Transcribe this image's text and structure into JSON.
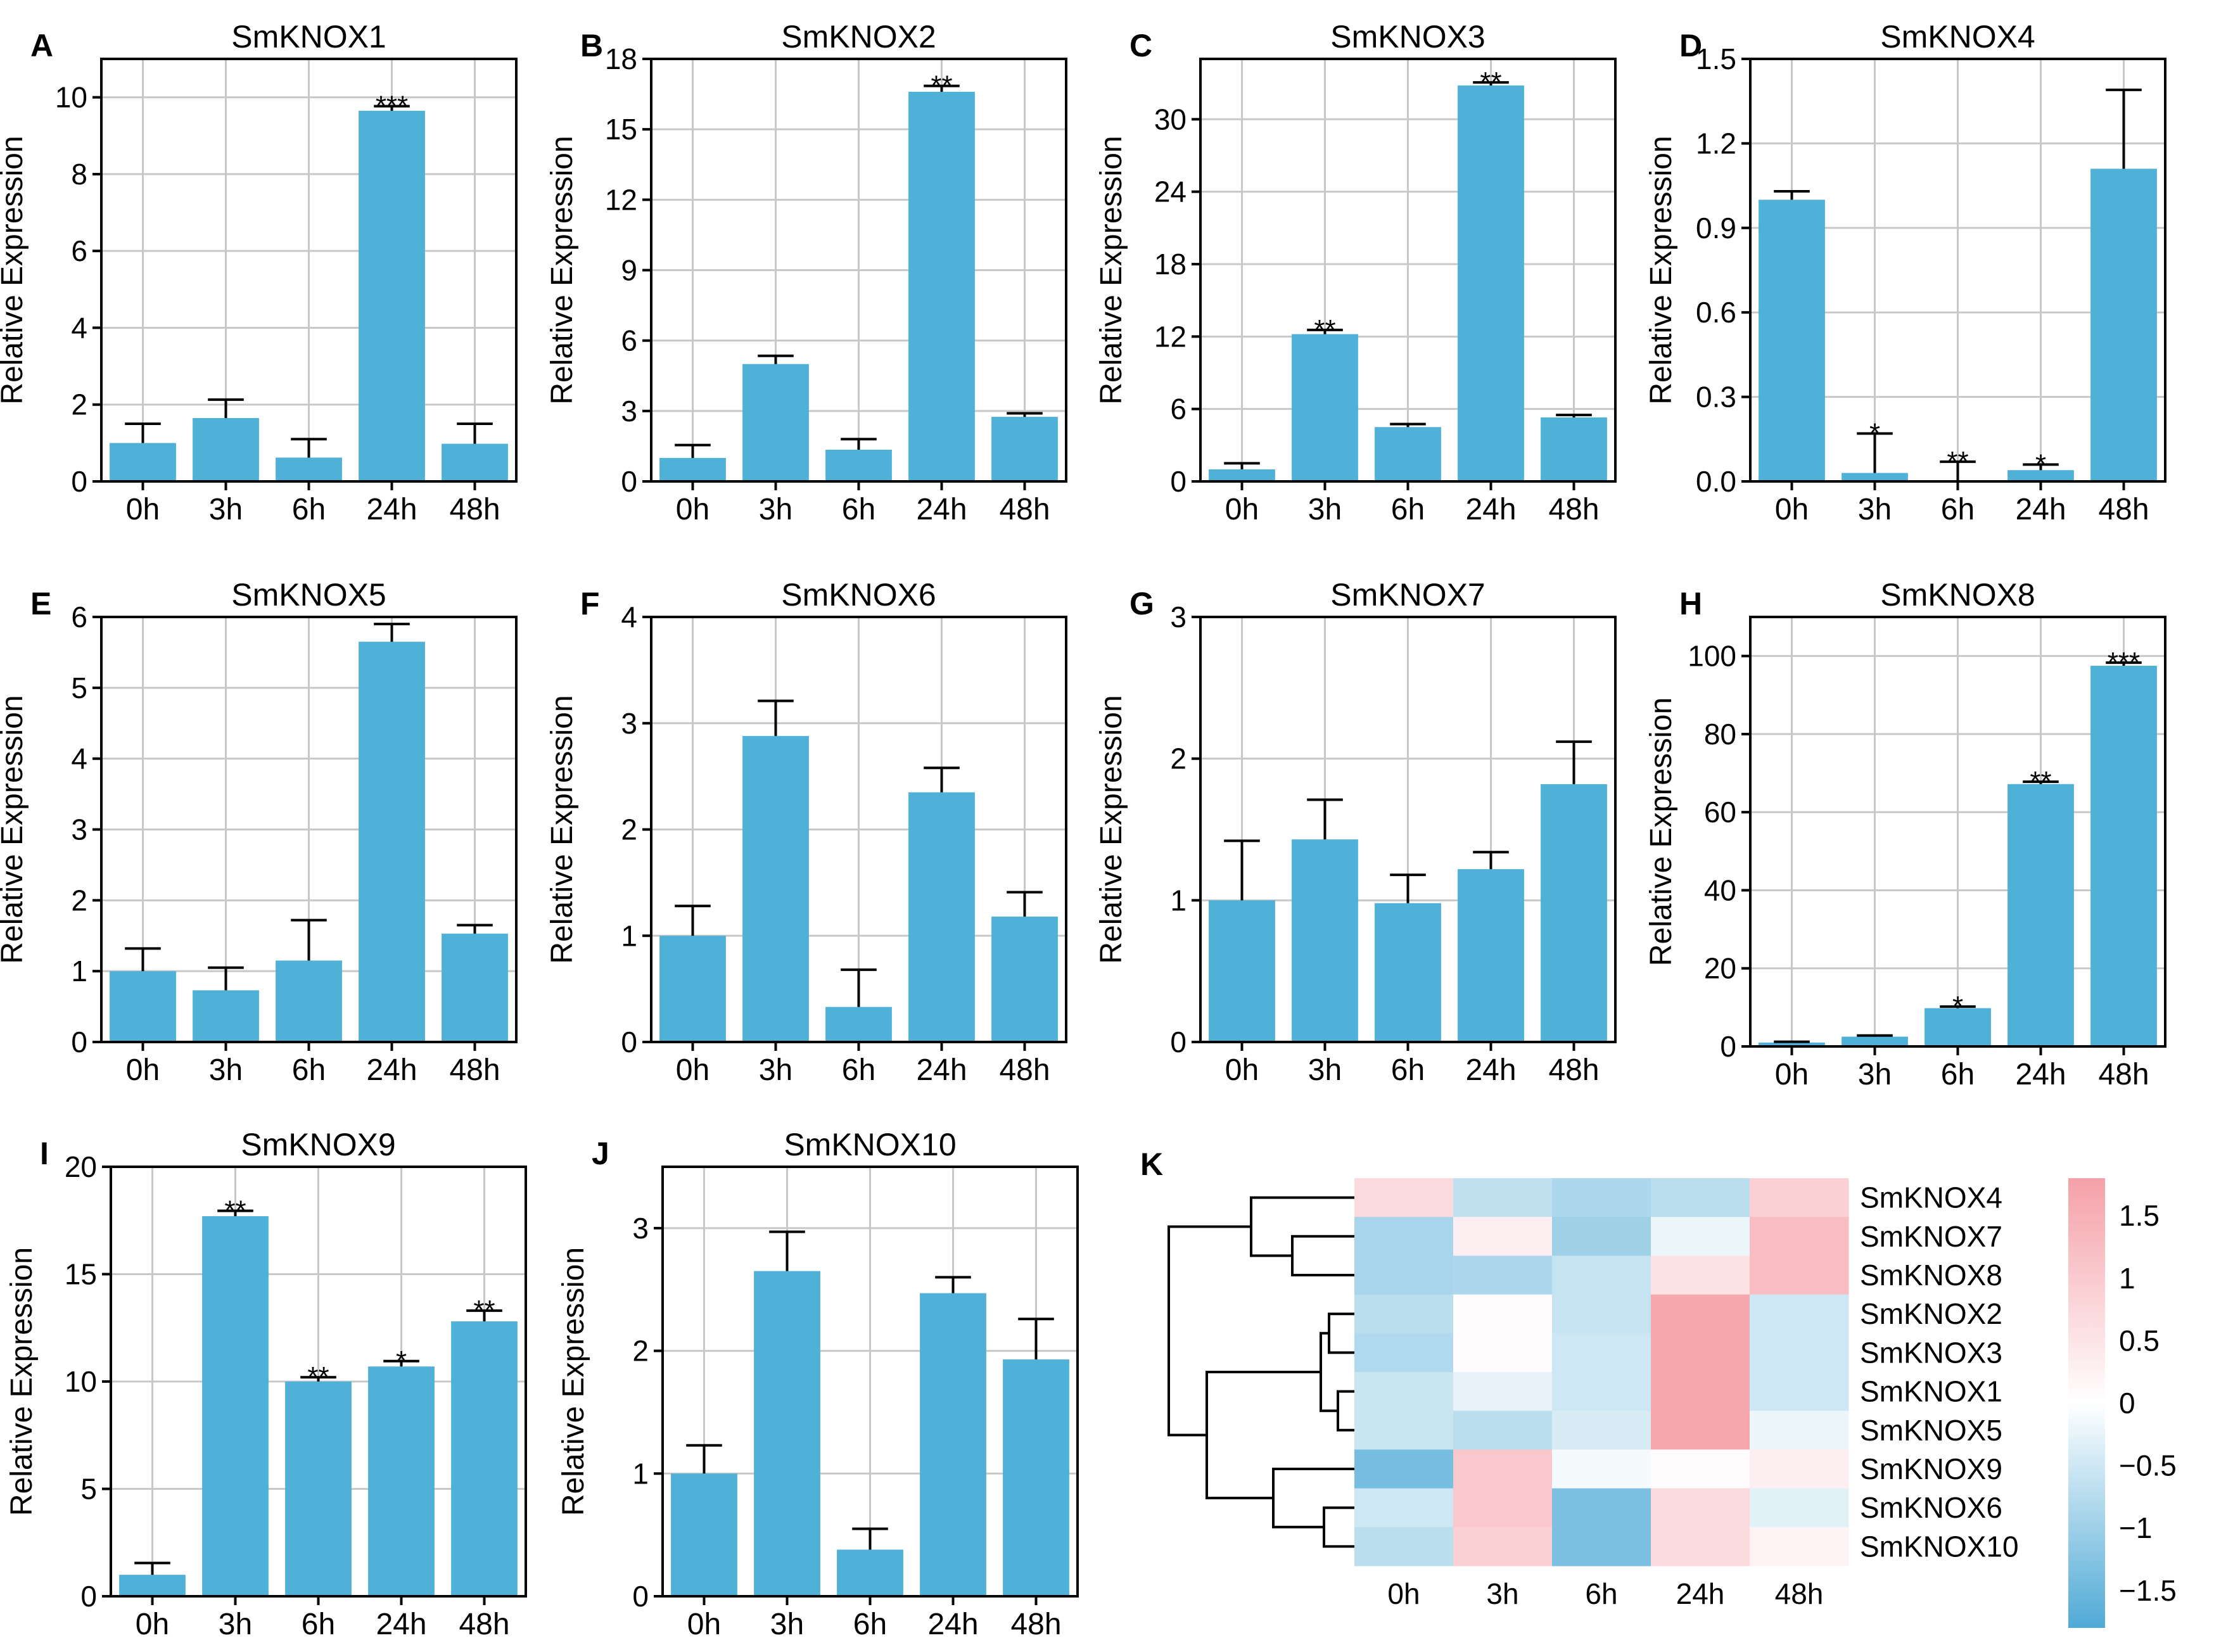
{
  "chart_data": [
    {
      "panel": "A",
      "type": "bar",
      "title": "SmKNOX1",
      "ylabel": "Relative Expression",
      "categories": [
        "0h",
        "3h",
        "6h",
        "24h",
        "48h"
      ],
      "values": [
        1.0,
        1.65,
        0.62,
        9.65,
        0.98
      ],
      "errors": [
        0.5,
        0.48,
        0.48,
        0.12,
        0.52
      ],
      "sig": [
        "",
        "",
        "",
        "***",
        ""
      ],
      "ylim": [
        0,
        11
      ],
      "yticks": [
        0,
        2,
        4,
        6,
        8,
        10
      ]
    },
    {
      "panel": "B",
      "type": "bar",
      "title": "SmKNOX2",
      "ylabel": "Relative Expression",
      "categories": [
        "0h",
        "3h",
        "6h",
        "24h",
        "48h"
      ],
      "values": [
        1.0,
        5.0,
        1.35,
        16.6,
        2.75
      ],
      "errors": [
        0.55,
        0.35,
        0.45,
        0.25,
        0.15
      ],
      "sig": [
        "",
        "",
        "",
        "**",
        ""
      ],
      "ylim": [
        0,
        18
      ],
      "yticks": [
        0,
        3,
        6,
        9,
        12,
        15,
        18
      ]
    },
    {
      "panel": "C",
      "type": "bar",
      "title": "SmKNOX3",
      "ylabel": "Relative Expression",
      "categories": [
        "0h",
        "3h",
        "6h",
        "24h",
        "48h"
      ],
      "values": [
        1.0,
        12.2,
        4.5,
        32.8,
        5.3
      ],
      "errors": [
        0.5,
        0.35,
        0.25,
        0.25,
        0.2
      ],
      "sig": [
        "",
        "**",
        "",
        "**",
        ""
      ],
      "ylim": [
        0,
        35
      ],
      "yticks": [
        0,
        6,
        12,
        18,
        24,
        30
      ]
    },
    {
      "panel": "D",
      "type": "bar",
      "title": "SmKNOX4",
      "ylabel": "Relative Expression",
      "categories": [
        "0h",
        "3h",
        "6h",
        "24h",
        "48h"
      ],
      "values": [
        1.0,
        0.03,
        0.0,
        0.04,
        1.11
      ],
      "errors": [
        0.03,
        0.14,
        0.07,
        0.02,
        0.28
      ],
      "sig": [
        "",
        "*",
        "**",
        "*",
        ""
      ],
      "ylim": [
        0,
        1.5
      ],
      "yticks": [
        "0.0",
        "0.3",
        "0.6",
        "0.9",
        "1.2",
        "1.5"
      ]
    },
    {
      "panel": "E",
      "type": "bar",
      "title": "SmKNOX5",
      "ylabel": "Relative Expression",
      "categories": [
        "0h",
        "3h",
        "6h",
        "24h",
        "48h"
      ],
      "values": [
        1.0,
        0.73,
        1.15,
        5.65,
        1.53
      ],
      "errors": [
        0.32,
        0.32,
        0.57,
        0.25,
        0.12
      ],
      "sig": [
        "",
        "",
        "",
        "",
        ""
      ],
      "ylim": [
        0,
        6
      ],
      "yticks": [
        0,
        1,
        2,
        3,
        4,
        5,
        6
      ]
    },
    {
      "panel": "F",
      "type": "bar",
      "title": "SmKNOX6",
      "ylabel": "Relative Expression",
      "categories": [
        "0h",
        "3h",
        "6h",
        "24h",
        "48h"
      ],
      "values": [
        1.0,
        2.88,
        0.33,
        2.35,
        1.18
      ],
      "errors": [
        0.28,
        0.33,
        0.35,
        0.23,
        0.23
      ],
      "sig": [
        "",
        "",
        "",
        "",
        ""
      ],
      "ylim": [
        0,
        4
      ],
      "yticks": [
        0,
        1,
        2,
        3,
        4
      ]
    },
    {
      "panel": "G",
      "type": "bar",
      "title": "SmKNOX7",
      "ylabel": "Relative Expression",
      "categories": [
        "0h",
        "3h",
        "6h",
        "24h",
        "48h"
      ],
      "values": [
        1.0,
        1.43,
        0.98,
        1.22,
        1.82
      ],
      "errors": [
        0.42,
        0.28,
        0.2,
        0.12,
        0.3
      ],
      "sig": [
        "",
        "",
        "",
        "",
        ""
      ],
      "ylim": [
        0,
        3
      ],
      "yticks": [
        0,
        1,
        2,
        3
      ]
    },
    {
      "panel": "H",
      "type": "bar",
      "title": "SmKNOX8",
      "ylabel": "Relative Expression",
      "categories": [
        "0h",
        "3h",
        "6h",
        "24h",
        "48h"
      ],
      "values": [
        1.0,
        2.5,
        9.8,
        67.2,
        97.5
      ],
      "errors": [
        0.2,
        0.3,
        0.4,
        0.6,
        0.8
      ],
      "sig": [
        "",
        "",
        "*",
        "**",
        "***"
      ],
      "ylim": [
        0,
        110
      ],
      "yticks": [
        0,
        20,
        40,
        60,
        80,
        100
      ]
    },
    {
      "panel": "I",
      "type": "bar",
      "title": "SmKNOX9",
      "ylabel": "Relative Expression",
      "categories": [
        "0h",
        "3h",
        "6h",
        "24h",
        "48h"
      ],
      "values": [
        1.0,
        17.7,
        10.0,
        10.7,
        12.8
      ],
      "errors": [
        0.55,
        0.25,
        0.2,
        0.25,
        0.5
      ],
      "sig": [
        "",
        "**",
        "**",
        "*",
        "**"
      ],
      "ylim": [
        0,
        20
      ],
      "yticks": [
        0,
        5,
        10,
        15,
        20
      ]
    },
    {
      "panel": "J",
      "type": "bar",
      "title": "SmKNOX10",
      "ylabel": "Relative Expression",
      "categories": [
        "0h",
        "3h",
        "6h",
        "24h",
        "48h"
      ],
      "values": [
        1.0,
        2.65,
        0.38,
        2.47,
        1.93
      ],
      "errors": [
        0.23,
        0.32,
        0.17,
        0.13,
        0.33
      ],
      "sig": [
        "",
        "",
        "",
        "",
        ""
      ],
      "ylim": [
        0,
        3.5
      ],
      "yticks": [
        0,
        1,
        2,
        3
      ]
    },
    {
      "panel": "K",
      "type": "heatmap",
      "columns": [
        "0h",
        "3h",
        "6h",
        "24h",
        "48h"
      ],
      "rows": [
        "SmKNOX4",
        "SmKNOX7",
        "SmKNOX8",
        "SmKNOX2",
        "SmKNOX3",
        "SmKNOX1",
        "SmKNOX5",
        "SmKNOX9",
        "SmKNOX6",
        "SmKNOX10"
      ],
      "values": [
        [
          0.7,
          -0.65,
          -0.85,
          -0.7,
          0.9
        ],
        [
          -0.9,
          0.3,
          -1.0,
          -0.2,
          1.25
        ],
        [
          -0.9,
          -0.85,
          -0.6,
          0.55,
          1.25
        ],
        [
          -0.7,
          0.05,
          -0.6,
          1.65,
          -0.5
        ],
        [
          -0.8,
          0.05,
          -0.5,
          1.65,
          -0.5
        ],
        [
          -0.55,
          -0.25,
          -0.5,
          1.65,
          -0.5
        ],
        [
          -0.55,
          -0.7,
          -0.4,
          1.65,
          -0.2
        ],
        [
          -1.4,
          1.05,
          -0.1,
          0.05,
          0.3
        ],
        [
          -0.5,
          1.05,
          -1.35,
          0.7,
          -0.3
        ],
        [
          -0.7,
          0.9,
          -1.35,
          0.7,
          0.2
        ]
      ],
      "colorbar_ticks": [
        "1.5",
        "1",
        "0.5",
        "0",
        "−0.5",
        "−1",
        "−1.5"
      ],
      "vmin": -1.8,
      "vmax": 1.8
    }
  ]
}
